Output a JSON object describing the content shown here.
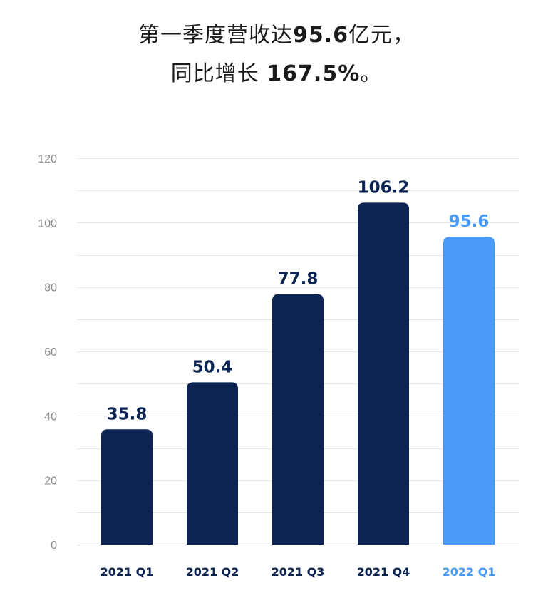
{
  "title": {
    "line1_prefix": "第一季度营收达",
    "line1_value": "95.6",
    "line1_suffix": "亿元，",
    "line2_prefix": "同比增长 ",
    "line2_value": "167.5%",
    "line2_suffix": "。"
  },
  "colors": {
    "primary": "#0c2451",
    "highlight": "#4a9bf7",
    "grid": "#e6e6e6",
    "tick": "#8a8a8a"
  },
  "chart_data": {
    "type": "bar",
    "categories": [
      "2021 Q1",
      "2021 Q2",
      "2021 Q3",
      "2021 Q4",
      "2022 Q1"
    ],
    "values": [
      35.8,
      50.4,
      77.8,
      106.2,
      95.6
    ],
    "value_labels": [
      "35.8",
      "50.4",
      "77.8",
      "106.2",
      "95.6"
    ],
    "highlight_index": 4,
    "yticks": [
      0,
      20,
      40,
      60,
      80,
      100,
      120
    ],
    "ytick_labels": [
      "0",
      "20",
      "40",
      "60",
      "80",
      "100",
      "120"
    ],
    "ylim": [
      0,
      120
    ],
    "grid": true,
    "title": "",
    "xlabel": "",
    "ylabel": ""
  }
}
